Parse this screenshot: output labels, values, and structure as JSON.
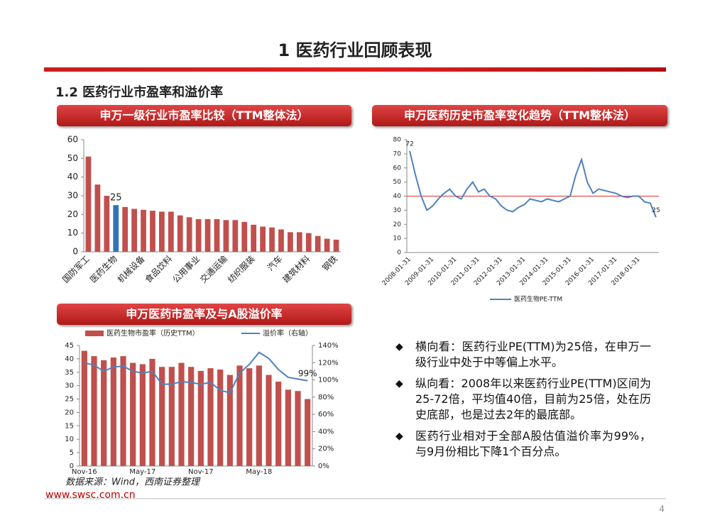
{
  "header": {
    "title": "1 医药行业回顾表现",
    "subtitle": "1.2 医药行业市盈率和溢价率"
  },
  "chart_data": [
    {
      "type": "bar",
      "title": "申万一级行业市盈率比较（TTM整体法）",
      "categories": [
        "国防军工",
        null,
        null,
        "医药生物",
        null,
        null,
        "机械设备",
        null,
        null,
        "食品饮料",
        null,
        null,
        "公用事业",
        null,
        null,
        "交通运输",
        null,
        null,
        "纺织服装",
        null,
        null,
        "汽车",
        null,
        null,
        "建筑材料",
        null,
        null,
        "钢铁"
      ],
      "values": [
        51,
        36,
        30,
        25,
        24,
        23,
        22.5,
        22,
        21.5,
        21.5,
        19.5,
        18.5,
        17.5,
        17.5,
        17.5,
        17,
        17,
        16,
        14.5,
        13.5,
        13,
        12,
        10.5,
        10.5,
        10,
        8.5,
        7,
        6.5
      ],
      "value_labels": [
        null,
        null,
        null,
        "25",
        null,
        null,
        null,
        null,
        null,
        null,
        null,
        null,
        null,
        null,
        null,
        null,
        null,
        null,
        null,
        null,
        null,
        null,
        null,
        null,
        null,
        null,
        null,
        null
      ],
      "colors": [
        "#c0504d",
        "#c0504d",
        "#c0504d",
        "#2e75b6",
        "#c0504d",
        "#c0504d",
        "#c0504d",
        "#c0504d",
        "#c0504d",
        "#c0504d",
        "#c0504d",
        "#c0504d",
        "#c0504d",
        "#c0504d",
        "#c0504d",
        "#c0504d",
        "#c0504d",
        "#c0504d",
        "#c0504d",
        "#c0504d",
        "#c0504d",
        "#c0504d",
        "#c0504d",
        "#c0504d",
        "#c0504d",
        "#c0504d",
        "#c0504d",
        "#c0504d"
      ],
      "ylim": [
        0,
        60
      ],
      "yticks": [
        0,
        10,
        20,
        30,
        40,
        50,
        60
      ]
    },
    {
      "type": "line",
      "title": "申万医药历史市盈率变化趋势（TTM整体法）",
      "categories": [
        "2008-01-31",
        null,
        null,
        null,
        "2009-01-31",
        null,
        null,
        null,
        "2010-01-31",
        null,
        null,
        null,
        "2011-01-31",
        null,
        null,
        null,
        "2012-01-31",
        null,
        null,
        null,
        "2013-01-31",
        null,
        null,
        null,
        "2014-01-31",
        null,
        null,
        null,
        "2015-01-31",
        null,
        null,
        null,
        "2016-01-31",
        null,
        null,
        null,
        "2017-01-31",
        null,
        null,
        null,
        "2018-01-31",
        null,
        null,
        null
      ],
      "series": [
        {
          "name": "医药生物PE-TTM",
          "color": "#4f81bd",
          "values": [
            72,
            55,
            40,
            30,
            33,
            38,
            42,
            45,
            40,
            38,
            45,
            50,
            43,
            45,
            40,
            38,
            33,
            30,
            29,
            32,
            34,
            38,
            37,
            36,
            38,
            37,
            36,
            38,
            40,
            55,
            66,
            50,
            42,
            45,
            44,
            43,
            42,
            40,
            39,
            40,
            40,
            36,
            35,
            25
          ],
          "value_labels": [
            "72",
            null,
            null,
            null,
            null,
            null,
            null,
            null,
            null,
            null,
            null,
            null,
            null,
            null,
            null,
            null,
            null,
            null,
            null,
            null,
            null,
            null,
            null,
            null,
            null,
            null,
            null,
            null,
            null,
            null,
            null,
            null,
            null,
            null,
            null,
            null,
            null,
            null,
            null,
            null,
            null,
            null,
            null,
            "25"
          ]
        }
      ],
      "reference_line": 40,
      "reference_color": "#e03030",
      "ylim": [
        0,
        80
      ],
      "yticks": [
        0,
        10,
        20,
        30,
        40,
        50,
        60,
        70,
        80
      ]
    },
    {
      "type": "combo",
      "title": "申万医药市盈率及与A股溢价率",
      "categories": [
        "Nov-16",
        null,
        null,
        null,
        null,
        null,
        "May-17",
        null,
        null,
        null,
        null,
        null,
        "Nov-17",
        null,
        null,
        null,
        null,
        null,
        "May-18",
        null,
        null,
        null,
        null,
        null
      ],
      "series": [
        {
          "name": "医药生物市盈率（历史TTM）",
          "color": "#c0504d",
          "values": [
            43,
            41,
            39.5,
            40.5,
            41,
            38.5,
            38,
            40,
            37,
            37,
            38.5,
            37,
            35.5,
            36.5,
            36,
            34,
            37.5,
            36.5,
            37.5,
            34,
            31.5,
            28.5,
            28,
            25
          ]
        },
        {
          "name": "溢价率（右轴）",
          "color": "#4f81bd",
          "axis": "y2",
          "values": [
            120,
            117,
            110,
            115,
            116,
            110,
            108,
            110,
            95,
            95,
            98,
            97,
            95,
            97,
            88,
            85,
            108,
            118,
            132,
            125,
            112,
            103,
            101,
            99
          ],
          "value_labels": [
            null,
            null,
            null,
            null,
            null,
            null,
            null,
            null,
            null,
            null,
            null,
            null,
            null,
            null,
            null,
            null,
            null,
            null,
            null,
            null,
            null,
            null,
            null,
            "99%"
          ]
        }
      ],
      "ylim": [
        0,
        45
      ],
      "yticks": [
        0,
        5,
        10,
        15,
        20,
        25,
        30,
        35,
        40,
        45
      ],
      "y2lim": [
        0,
        140
      ],
      "y2ticks": [
        {
          "value": 0,
          "label": "0%"
        },
        {
          "value": 20,
          "label": "20%"
        },
        {
          "value": 40,
          "label": "40%"
        },
        {
          "value": 60,
          "label": "60%"
        },
        {
          "value": 80,
          "label": "80%"
        },
        {
          "value": 100,
          "label": "100%"
        },
        {
          "value": 120,
          "label": "120%"
        },
        {
          "value": 140,
          "label": "140%"
        }
      ]
    }
  ],
  "bullets": [
    "横向看：医药行业PE(TTM)为25倍，在申万一级行业中处于中等偏上水平。",
    "纵向看：2008年以来医药行业PE(TTM)区间为25-72倍，平均值40倍，目前为25倍，处在历史底部，也是过去2年的最底部。",
    "医药行业相对于全部A股估值溢价率为99%，与9月份相比下降1个百分点。"
  ],
  "source": "数据来源：Wind，西南证券整理",
  "website": "www.swsc.com.cn",
  "page_number": 4
}
